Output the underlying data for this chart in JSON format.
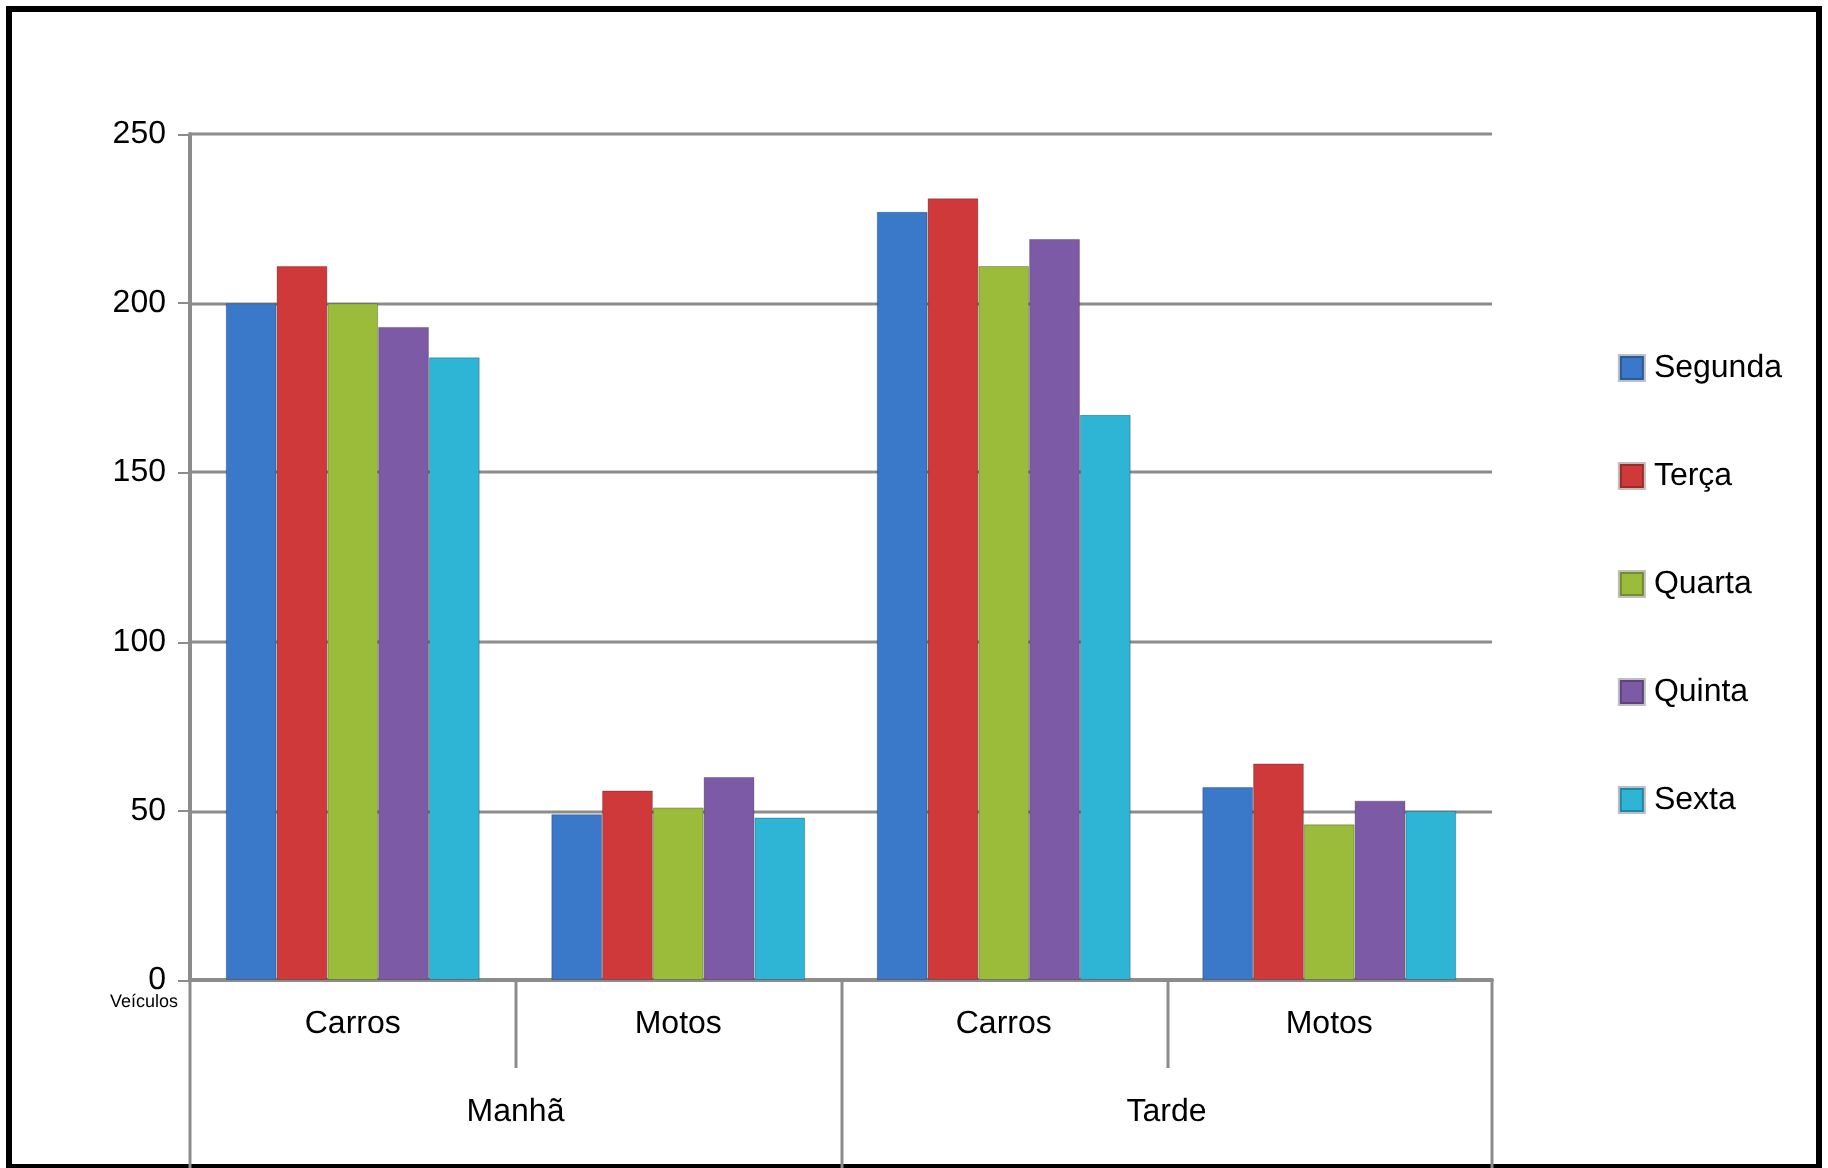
{
  "chart_data": {
    "type": "bar",
    "categories": [
      "Carros",
      "Motos",
      "Carros",
      "Motos"
    ],
    "series": [
      {
        "name": "Segunda",
        "color": "#3a78c9",
        "values": [
          200,
          49,
          227,
          57
        ]
      },
      {
        "name": "Terça",
        "color": "#d0393a",
        "values": [
          211,
          56,
          231,
          64
        ]
      },
      {
        "name": "Quarta",
        "color": "#9bbb3a",
        "values": [
          200,
          51,
          211,
          46
        ]
      },
      {
        "name": "Quinta",
        "color": "#7d5aa6",
        "values": [
          193,
          60,
          219,
          53
        ]
      },
      {
        "name": "Sexta",
        "color": "#2eb5d6",
        "values": [
          184,
          48,
          167,
          50
        ]
      }
    ],
    "ylim": [
      0,
      250
    ],
    "yticks": [
      0,
      50,
      100,
      150,
      200,
      250
    ],
    "grid": "y",
    "legend": "right",
    "annotations": [
      "Manhã",
      "Tarde",
      "Veículos"
    ]
  }
}
